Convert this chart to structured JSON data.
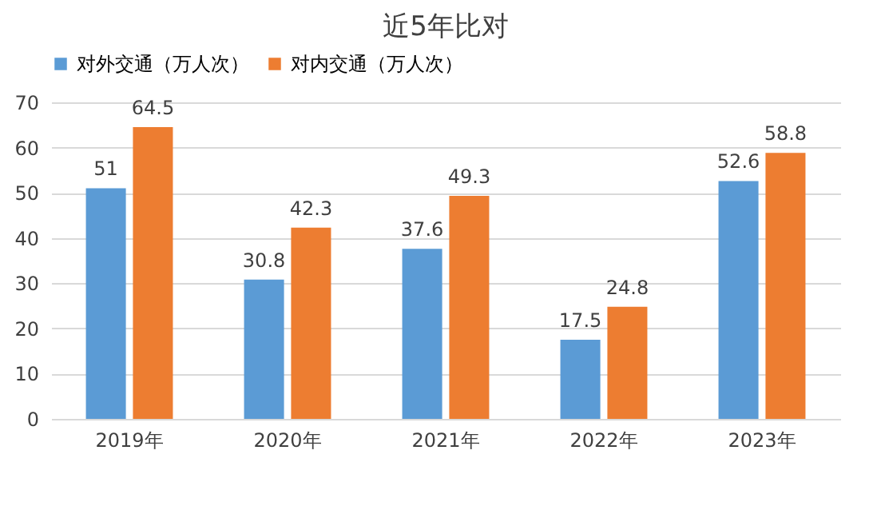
{
  "chart_data": {
    "type": "bar",
    "title": "近5年比对",
    "categories": [
      "2019年",
      "2020年",
      "2021年",
      "2022年",
      "2023年"
    ],
    "series": [
      {
        "name": "对外交通（万人次）",
        "color": "#5b9bd5",
        "values": [
          51,
          30.8,
          37.6,
          17.5,
          52.6
        ]
      },
      {
        "name": "对内交通（万人次）",
        "color": "#ed7d31",
        "values": [
          64.5,
          42.3,
          49.3,
          24.8,
          58.8
        ]
      }
    ],
    "ylim": [
      0,
      70
    ],
    "yticks": [
      0,
      10,
      20,
      30,
      40,
      50,
      60,
      70
    ],
    "grid": "y",
    "legend": "top",
    "data_labels": true
  }
}
